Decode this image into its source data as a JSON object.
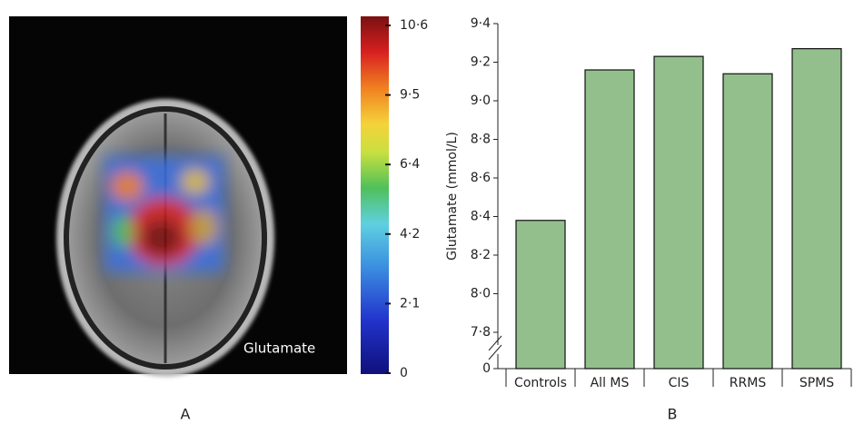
{
  "chart_data": [
    {
      "type": "colorbar",
      "panel_label": "A",
      "image_label": "Glutamate",
      "ticks": [
        0,
        {
          "value": 2.1,
          "label": "2·1"
        },
        {
          "value": 4.2,
          "label": "4·2"
        },
        {
          "value": 6.4,
          "label": "6·4"
        },
        {
          "value": 9.5,
          "label": "9·5"
        },
        {
          "value": 10.6,
          "label": "10·6"
        }
      ]
    },
    {
      "type": "bar",
      "panel_label": "B",
      "y_label": "Glutamate (mmol/L)",
      "categories": [
        "Controls",
        "All MS",
        "CIS",
        "RRMS",
        "SPMS"
      ],
      "values": [
        8.38,
        9.16,
        9.23,
        9.14,
        9.27
      ],
      "color": "#93bf8c",
      "ylim": [
        7.8,
        9.4
      ],
      "axis_break": true,
      "yticks": [
        0,
        {
          "value": 7.8,
          "label": "7·8"
        },
        {
          "value": 8.0,
          "label": "8·0"
        },
        {
          "value": 8.2,
          "label": "8·2"
        },
        {
          "value": 8.4,
          "label": "8·4"
        },
        {
          "value": 8.6,
          "label": "8·6"
        },
        {
          "value": 8.8,
          "label": "8·8"
        },
        {
          "value": 9.0,
          "label": "9·0"
        },
        {
          "value": 9.2,
          "label": "9·2"
        },
        {
          "value": 9.4,
          "label": "9·4"
        }
      ]
    }
  ]
}
